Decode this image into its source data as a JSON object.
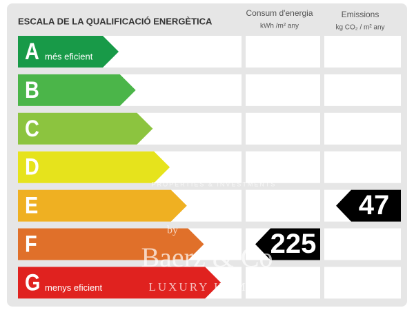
{
  "header": {
    "title": "ESCALA DE LA QUALIFICACIÓ ENERGÈTICA",
    "consum": {
      "title": "Consum d'energia",
      "unit": "kWh /m² any"
    },
    "emissions": {
      "title": "Emissions",
      "unit": "kg CO₂ / m² any"
    }
  },
  "rows": [
    {
      "letter": "A",
      "label": "més eficient",
      "color": "#189a48"
    },
    {
      "letter": "B",
      "color": "#4bb549"
    },
    {
      "letter": "C",
      "color": "#8cc43f"
    },
    {
      "letter": "D",
      "color": "#e6e31c"
    },
    {
      "letter": "E",
      "color": "#efb022",
      "emissions": 47
    },
    {
      "letter": "F",
      "color": "#e0702a",
      "consum": 225
    },
    {
      "letter": "G",
      "label": "menys eficient",
      "color": "#e0221f"
    }
  ],
  "watermark": {
    "tagline": "PROPERTIES & INVESTMENTS",
    "by": "by",
    "brand": "Baerz & Co",
    "sub": "LUXURY HOMES"
  }
}
